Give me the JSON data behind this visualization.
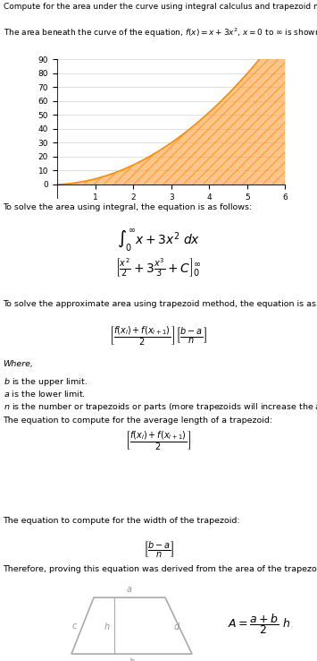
{
  "title_line1": "Compute for the area under the curve using integral calculus and trapezoid method.",
  "title_line2": "The area beneath the curve of the equation, $f(x) = x + 3x^2$, $x = 0$ to $\\infty$ is shown below.",
  "graph_xlim": [
    0,
    6
  ],
  "graph_ylim": [
    -10,
    90
  ],
  "graph_xticks": [
    1,
    2,
    3,
    4,
    5,
    6
  ],
  "graph_yticks": [
    0,
    10,
    20,
    30,
    40,
    50,
    60,
    70,
    80,
    90
  ],
  "curve_color": "#FF8C00",
  "fill_color": "#FFA040",
  "fill_hatch": "///",
  "section_bg": "#E8E8E8",
  "text_color": "#000000",
  "body_fontsize": 7.5,
  "math_fontsize": 8.5
}
